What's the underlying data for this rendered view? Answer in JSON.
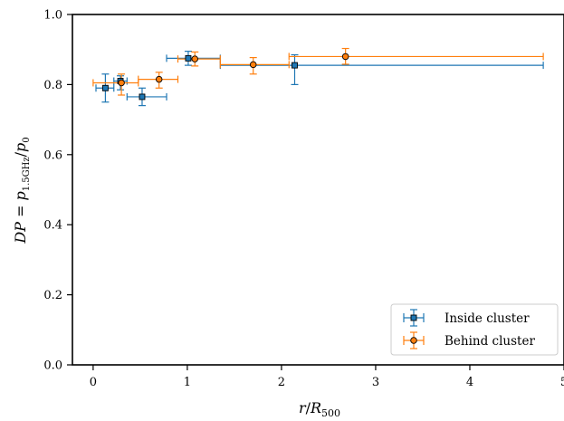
{
  "chart_data": {
    "type": "scatter",
    "title": "",
    "xlabel": "r/R500",
    "ylabel": "DP = p1.5GHz/p0",
    "xlim": [
      -0.22,
      5.0
    ],
    "ylim": [
      0.0,
      1.0
    ],
    "xticks": [
      0,
      1,
      2,
      3,
      4,
      5
    ],
    "yticks": [
      0.0,
      0.2,
      0.4,
      0.6,
      0.8,
      1.0
    ],
    "xtick_labels": [
      "0",
      "1",
      "2",
      "3",
      "4",
      "5"
    ],
    "ytick_labels": [
      "0.0",
      "0.2",
      "0.4",
      "0.6",
      "0.8",
      "1.0"
    ],
    "grid": false,
    "legend_position": "bottom-right",
    "series": [
      {
        "name": "Inside cluster",
        "marker": "square",
        "color": "#1f77b4",
        "points": [
          {
            "x": 0.13,
            "y": 0.79,
            "xlo": 0.03,
            "xhi": 0.22,
            "ylo": 0.75,
            "yhi": 0.83
          },
          {
            "x": 0.29,
            "y": 0.81,
            "xlo": 0.22,
            "xhi": 0.36,
            "ylo": 0.785,
            "yhi": 0.825
          },
          {
            "x": 0.52,
            "y": 0.765,
            "xlo": 0.36,
            "xhi": 0.78,
            "ylo": 0.74,
            "yhi": 0.79
          },
          {
            "x": 1.01,
            "y": 0.875,
            "xlo": 0.78,
            "xhi": 1.35,
            "ylo": 0.855,
            "yhi": 0.895
          },
          {
            "x": 2.14,
            "y": 0.855,
            "xlo": 1.35,
            "xhi": 4.78,
            "ylo": 0.8,
            "yhi": 0.885
          }
        ]
      },
      {
        "name": "Behind cluster",
        "marker": "circle",
        "color": "#ff7f0e",
        "points": [
          {
            "x": 0.3,
            "y": 0.805,
            "xlo": 0.0,
            "xhi": 0.48,
            "ylo": 0.77,
            "yhi": 0.83
          },
          {
            "x": 0.7,
            "y": 0.815,
            "xlo": 0.48,
            "xhi": 0.9,
            "ylo": 0.79,
            "yhi": 0.835
          },
          {
            "x": 1.08,
            "y": 0.873,
            "xlo": 0.9,
            "xhi": 1.35,
            "ylo": 0.853,
            "yhi": 0.893
          },
          {
            "x": 1.7,
            "y": 0.857,
            "xlo": 1.35,
            "xhi": 2.08,
            "ylo": 0.83,
            "yhi": 0.877
          },
          {
            "x": 2.68,
            "y": 0.88,
            "xlo": 2.08,
            "xhi": 4.78,
            "ylo": 0.858,
            "yhi": 0.903
          }
        ]
      }
    ]
  },
  "legend": {
    "items": [
      {
        "label": "Inside cluster"
      },
      {
        "label": "Behind cluster"
      }
    ]
  }
}
